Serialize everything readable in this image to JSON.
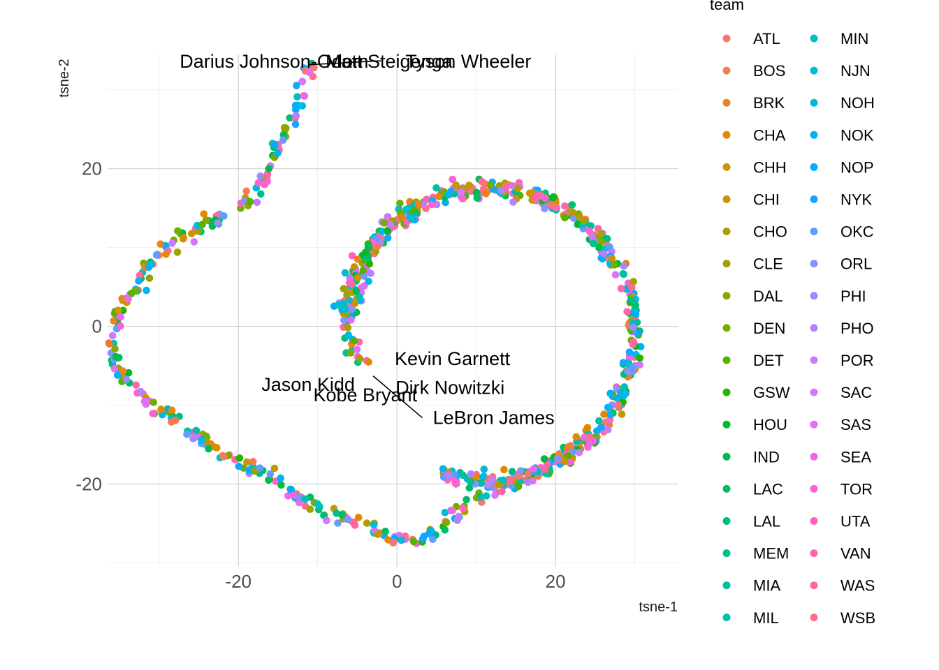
{
  "chart_data": {
    "type": "scatter",
    "xlabel": "tsne-1",
    "ylabel": "tsne-2",
    "xlim": [
      -36.5,
      35.5
    ],
    "ylim": [
      -30.5,
      34.5
    ],
    "x_ticks": [
      -20,
      0,
      20
    ],
    "y_ticks": [
      -20,
      0,
      20
    ],
    "x_tick_labels": [
      "-20",
      "0",
      "20"
    ],
    "y_tick_labels": [
      "-20",
      "0",
      "20"
    ],
    "grid": true,
    "legend": {
      "title": "team",
      "placement": "right",
      "columns": 2,
      "entries": [
        {
          "name": "ATL",
          "color": "#F8766D"
        },
        {
          "name": "BOS",
          "color": "#F47C4F"
        },
        {
          "name": "BRK",
          "color": "#EC8224"
        },
        {
          "name": "CHA",
          "color": "#E08A00"
        },
        {
          "name": "CHH",
          "color": "#D19100"
        },
        {
          "name": "CHI",
          "color": "#C29800"
        },
        {
          "name": "CHO",
          "color": "#B09E00"
        },
        {
          "name": "CLE",
          "color": "#9DA400"
        },
        {
          "name": "DAL",
          "color": "#89A900"
        },
        {
          "name": "DEN",
          "color": "#71AE00"
        },
        {
          "name": "DET",
          "color": "#53B300"
        },
        {
          "name": "GSW",
          "color": "#22B600"
        },
        {
          "name": "HOU",
          "color": "#00B92F"
        },
        {
          "name": "IND",
          "color": "#00BB4D"
        },
        {
          "name": "LAC",
          "color": "#00BD65"
        },
        {
          "name": "LAL",
          "color": "#00BE7A"
        },
        {
          "name": "MEM",
          "color": "#00BF8E"
        },
        {
          "name": "MIA",
          "color": "#00C0A1"
        },
        {
          "name": "MIL",
          "color": "#00BFB4"
        },
        {
          "name": "MIN",
          "color": "#00BEC5"
        },
        {
          "name": "NJN",
          "color": "#00BCD5"
        },
        {
          "name": "NOH",
          "color": "#00B8E4"
        },
        {
          "name": "NOK",
          "color": "#00B3F1"
        },
        {
          "name": "NOP",
          "color": "#00ADFA"
        },
        {
          "name": "NYK",
          "color": "#14A5FF"
        },
        {
          "name": "OKC",
          "color": "#619CFF"
        },
        {
          "name": "ORL",
          "color": "#8493FF"
        },
        {
          "name": "PHI",
          "color": "#9F8AFF"
        },
        {
          "name": "PHO",
          "color": "#B481FF"
        },
        {
          "name": "POR",
          "color": "#C77CFF"
        },
        {
          "name": "SAC",
          "color": "#D874FD"
        },
        {
          "name": "SAS",
          "color": "#E76BF3"
        },
        {
          "name": "SEA",
          "color": "#F365E7"
        },
        {
          "name": "TOR",
          "color": "#FC61D5"
        },
        {
          "name": "UTA",
          "color": "#FF62C1"
        },
        {
          "name": "VAN",
          "color": "#FF64AE"
        },
        {
          "name": "WAS",
          "color": "#FF6999"
        },
        {
          "name": "WSB",
          "color": "#FD6F86"
        }
      ]
    },
    "annotations": [
      {
        "text": "Darius Johnson-Odom",
        "label": [
          -15.5,
          33.6
        ],
        "point": [
          -11,
          33
        ]
      },
      {
        "text": "Matt Steigenga",
        "label": [
          -1,
          33.6
        ],
        "point": [
          -11,
          33
        ]
      },
      {
        "text": "Tyson Wheeler",
        "label": [
          9,
          33.6
        ],
        "point": [
          -11,
          33
        ]
      },
      {
        "text": "Kevin Garnett",
        "label": [
          7,
          -4.1
        ],
        "point": [
          -3,
          -5
        ]
      },
      {
        "text": "Jason Kidd",
        "label": [
          -11.2,
          -7.4
        ],
        "point": [
          -3,
          -5
        ]
      },
      {
        "text": "Dirk Nowitzki",
        "label": [
          6.7,
          -7.8
        ],
        "point": [
          -3,
          -5
        ]
      },
      {
        "text": "Kobe Bryant",
        "label": [
          -4,
          -8.7
        ],
        "point": [
          -3,
          -5
        ]
      },
      {
        "text": "LeBron James",
        "label": [
          12.2,
          -11.6
        ],
        "point": [
          -3,
          -5
        ]
      }
    ],
    "clusters": {
      "note_free": true,
      "outer_path": [
        [
          -11,
          33
        ],
        [
          -12,
          30
        ],
        [
          -13,
          27
        ],
        [
          -14,
          24
        ],
        [
          -16,
          21
        ],
        [
          -17,
          18
        ],
        [
          -20,
          15
        ],
        [
          -24,
          13
        ],
        [
          -28,
          11
        ],
        [
          -31,
          8
        ],
        [
          -33,
          5
        ],
        [
          -35,
          2
        ],
        [
          -36,
          -2
        ],
        [
          -35.5,
          -5
        ],
        [
          -33,
          -8
        ],
        [
          -31,
          -10
        ],
        [
          -28,
          -12
        ],
        [
          -25,
          -14
        ],
        [
          -22,
          -16
        ],
        [
          -18,
          -18
        ],
        [
          -15,
          -20
        ],
        [
          -12,
          -22
        ],
        [
          -8,
          -24
        ],
        [
          -4,
          -25
        ],
        [
          -1,
          -27
        ],
        [
          3,
          -27
        ],
        [
          6,
          -25
        ],
        [
          10,
          -22
        ],
        [
          14,
          -20
        ],
        [
          18,
          -18
        ],
        [
          22,
          -16
        ],
        [
          25,
          -14
        ]
      ],
      "ring_center": [
        11.5,
        -1
      ],
      "ring_radii": [
        16.5,
        20.5
      ],
      "ring_arc_deg": [
        -110,
        172
      ],
      "inner_arc": [
        [
          3,
          14
        ],
        [
          -1,
          13
        ],
        [
          -3,
          10
        ],
        [
          -4,
          6
        ],
        [
          -6,
          2
        ],
        [
          -6,
          -2
        ],
        [
          -4,
          -5
        ]
      ]
    }
  }
}
